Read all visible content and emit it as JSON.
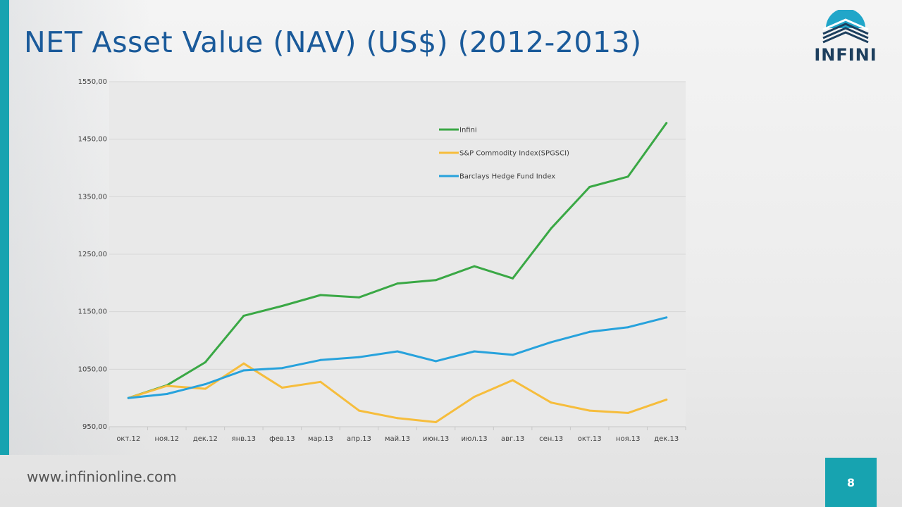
{
  "slide": {
    "title": "NET Asset Value (NAV)  (US$)  (2012-2013)",
    "logo_text": "INFINI",
    "website": "www.infinionline.com",
    "page_number": "8",
    "accent_color": "#17a3b0",
    "title_color": "#1a5a9a"
  },
  "chart_data": {
    "type": "line",
    "title": "",
    "xlabel": "",
    "ylabel": "",
    "categories": [
      "окт.12",
      "ноя.12",
      "дек.12",
      "янв.13",
      "фев.13",
      "мар.13",
      "апр.13",
      "май.13",
      "июн.13",
      "июл.13",
      "авг.13",
      "сен.13",
      "окт.13",
      "ноя.13",
      "дек.13"
    ],
    "ylim": [
      950,
      1550
    ],
    "yticks": [
      950,
      1050,
      1150,
      1250,
      1350,
      1450,
      1550
    ],
    "ytick_labels": [
      "950,00",
      "1050,00",
      "1150,00",
      "1250,00",
      "1350,00",
      "1450,00",
      "1550,00"
    ],
    "grid": true,
    "legend_position": "top-right",
    "series": [
      {
        "name": "Infini",
        "color": "#3aa845",
        "values": [
          1000,
          1022,
          1062,
          1143,
          1160,
          1179,
          1175,
          1199,
          1205,
          1229,
          1208,
          1295,
          1367,
          1385,
          1478
        ]
      },
      {
        "name": "S&P Commodity Index(SPGSCI)",
        "color": "#f6bd3c",
        "values": [
          1000,
          1021,
          1016,
          1060,
          1018,
          1028,
          978,
          965,
          958,
          1002,
          1031,
          992,
          978,
          974,
          997
        ]
      },
      {
        "name": "Barclays Hedge Fund Index",
        "color": "#27a2dc",
        "values": [
          1000,
          1007,
          1024,
          1048,
          1052,
          1066,
          1071,
          1081,
          1064,
          1081,
          1075,
          1097,
          1115,
          1123,
          1140
        ]
      }
    ]
  }
}
